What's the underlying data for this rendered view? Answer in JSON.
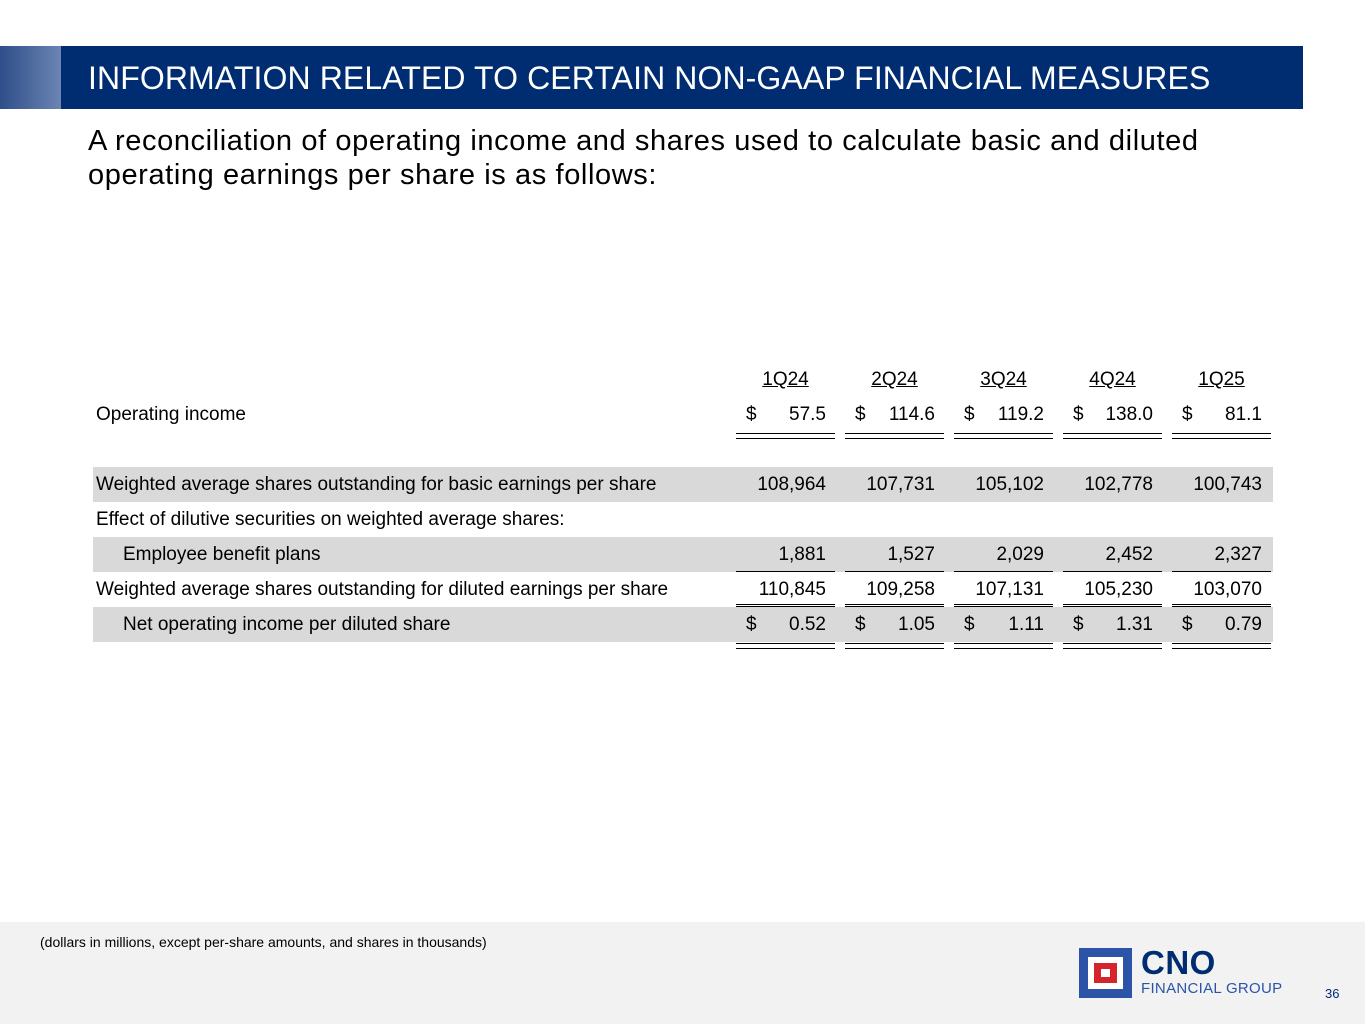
{
  "header": {
    "title": "INFORMATION RELATED TO CERTAIN NON-GAAP FINANCIAL MEASURES"
  },
  "subtitle": "A reconciliation of operating income and shares used to calculate basic and diluted operating earnings per share is as follows:",
  "table": {
    "columns": [
      "1Q24",
      "2Q24",
      "3Q24",
      "4Q24",
      "1Q25"
    ],
    "currency_symbol": "$",
    "operating_income": {
      "label": "Operating income",
      "values": [
        "57.5",
        "114.6",
        "119.2",
        "138.0",
        "81.1"
      ]
    },
    "basic_shares": {
      "label": "Weighted average shares outstanding for basic earnings per share",
      "values": [
        "108,964",
        "107,731",
        "105,102",
        "102,778",
        "100,743"
      ]
    },
    "dilutive_heading": {
      "label": "Effect of dilutive securities on weighted average shares:"
    },
    "employee_benefit": {
      "label": "Employee benefit plans",
      "values": [
        "1,881",
        "1,527",
        "2,029",
        "2,452",
        "2,327"
      ]
    },
    "diluted_shares": {
      "label": "Weighted average shares outstanding for diluted earnings per share",
      "values": [
        "110,845",
        "109,258",
        "107,131",
        "105,230",
        "103,070"
      ]
    },
    "net_per_share": {
      "label": "Net operating income per diluted share",
      "values": [
        "0.52",
        "1.05",
        "1.11",
        "1.31",
        "0.79"
      ]
    }
  },
  "footer": {
    "note": "(dollars in millions, except per-share amounts, and shares in thousands)",
    "logo_name": "CNO",
    "logo_tagline": "FINANCIAL GROUP",
    "page_number": "36"
  },
  "colors": {
    "brand_navy": "#002d72",
    "brand_blue": "#2b54a8",
    "brand_red": "#d5242b",
    "row_shade": "#d9d9d9"
  }
}
